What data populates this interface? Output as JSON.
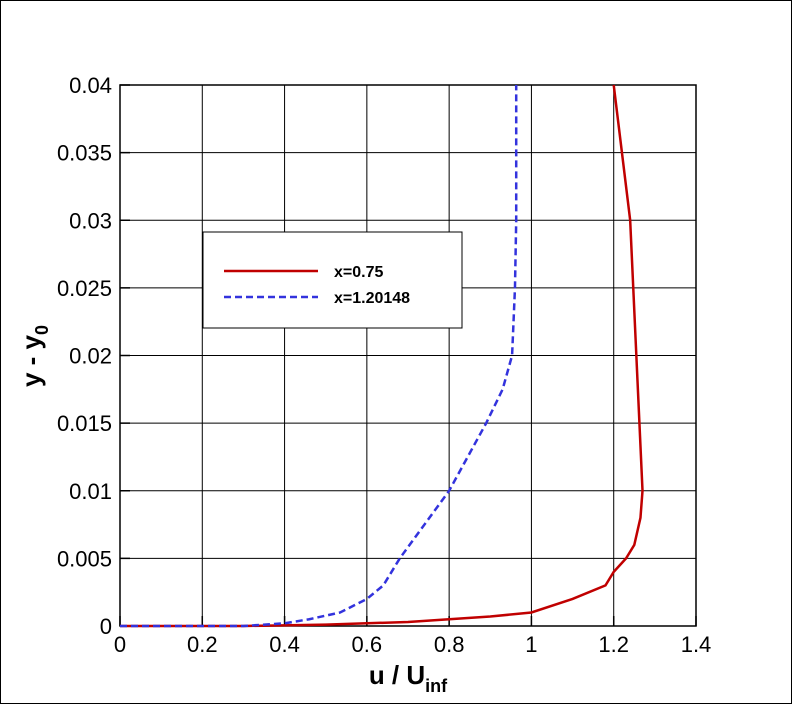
{
  "chart_data": {
    "type": "line",
    "xlabel": "u / U",
    "xlabel_sub": "inf",
    "ylabel": "y - y",
    "ylabel_sub": "0",
    "xlim": [
      0,
      1.4
    ],
    "xticks": [
      0,
      0.2,
      0.4,
      0.6,
      0.8,
      1,
      1.2,
      1.4
    ],
    "ylim": [
      0,
      0.04
    ],
    "yticks": [
      0,
      0.005,
      0.01,
      0.015,
      0.02,
      0.025,
      0.03,
      0.035,
      0.04
    ],
    "grid": true,
    "series": [
      {
        "name": "x=0.75",
        "color": "#c00000",
        "dash": false,
        "x": [
          0,
          0.3,
          0.5,
          0.7,
          0.9,
          1.0,
          1.1,
          1.18,
          1.2,
          1.23,
          1.25,
          1.265,
          1.27,
          1.255,
          1.24,
          1.2
        ],
        "values": [
          0,
          0,
          0.0001,
          0.0003,
          0.0007,
          0.001,
          0.002,
          0.003,
          0.004,
          0.005,
          0.006,
          0.008,
          0.01,
          0.02,
          0.03,
          0.04
        ]
      },
      {
        "name": "x=1.20148",
        "color": "#3333dd",
        "dash": true,
        "x": [
          0,
          0.3,
          0.4,
          0.46,
          0.535,
          0.6,
          0.64,
          0.68,
          0.74,
          0.8,
          0.89,
          0.93,
          0.953,
          0.96,
          0.963,
          0.963
        ],
        "values": [
          0,
          0,
          0.0002,
          0.0005,
          0.001,
          0.002,
          0.003,
          0.005,
          0.0075,
          0.01,
          0.015,
          0.0175,
          0.02,
          0.025,
          0.03,
          0.04
        ]
      }
    ]
  }
}
